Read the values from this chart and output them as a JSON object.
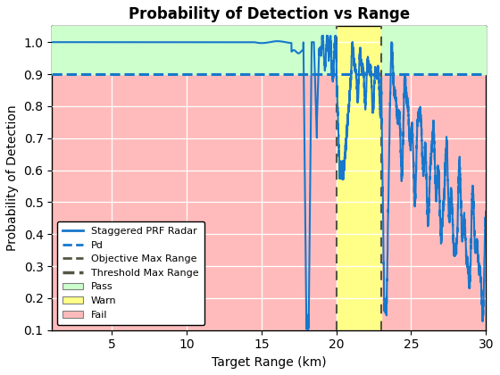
{
  "title": "Probability of Detection vs Range",
  "xlabel": "Target Range (km)",
  "ylabel": "Probability of Detection",
  "xlim": [
    1,
    30
  ],
  "ylim": [
    0.1,
    1.05
  ],
  "yticks": [
    0.1,
    0.2,
    0.3,
    0.4,
    0.5,
    0.6,
    0.7,
    0.8,
    0.9,
    1.0
  ],
  "xticks": [
    5,
    10,
    15,
    20,
    25,
    30
  ],
  "pd_level": 0.9,
  "objective_range": 20.0,
  "threshold_range": 23.0,
  "pass_color": "#ccffcc",
  "warn_color": "#ffff88",
  "fail_color": "#ffbbbb",
  "pd_color": "#1777cc",
  "line_color": "#1777cc",
  "obj_range_color": "#555544",
  "thr_range_color": "#555544",
  "grid_color": "#ffffff"
}
